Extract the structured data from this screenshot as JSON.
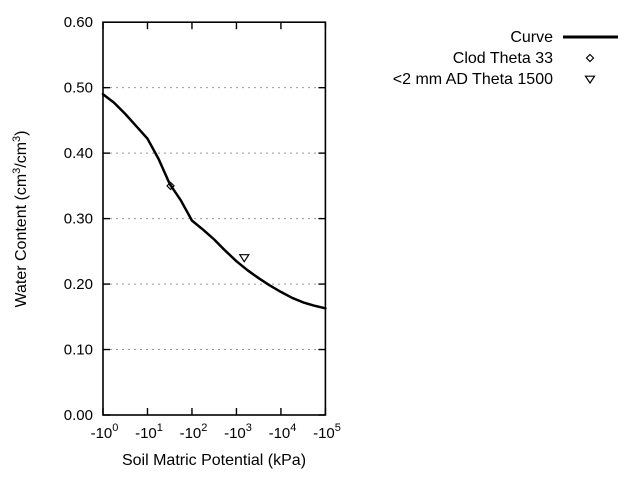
{
  "figure": {
    "background": "#ffffff",
    "text_color": "#000000"
  },
  "chart_data": {
    "type": "line",
    "title": "",
    "xlabel": "Soil Matric Potential (kPa)",
    "ylabel": "Water Content (cm3/cm3)",
    "ylabel_parts": [
      "Water Content (cm",
      "3",
      "/cm",
      "3",
      ")"
    ],
    "x_scale": "negative-log10",
    "x_decade_range": [
      0,
      5
    ],
    "ylim": [
      0.0,
      0.6
    ],
    "grid": {
      "horizontal": "dotted",
      "vertical": "none",
      "color": "#999999"
    },
    "x_ticks": [
      {
        "base": "-10",
        "exp": "0",
        "decade": 0
      },
      {
        "base": "-10",
        "exp": "1",
        "decade": 1
      },
      {
        "base": "-10",
        "exp": "2",
        "decade": 2
      },
      {
        "base": "-10",
        "exp": "3",
        "decade": 3
      },
      {
        "base": "-10",
        "exp": "4",
        "decade": 4
      },
      {
        "base": "-10",
        "exp": "5",
        "decade": 5
      }
    ],
    "y_ticks": [
      {
        "value": 0.0,
        "label": "0.00"
      },
      {
        "value": 0.1,
        "label": "0.10"
      },
      {
        "value": 0.2,
        "label": "0.20"
      },
      {
        "value": 0.3,
        "label": "0.30"
      },
      {
        "value": 0.4,
        "label": "0.40"
      },
      {
        "value": 0.5,
        "label": "0.50"
      },
      {
        "value": 0.6,
        "label": "0.60"
      }
    ],
    "series": [
      {
        "name": "Curve",
        "type": "line",
        "color": "#000000",
        "points_log10kpa_theta": [
          [
            0.0,
            0.49
          ],
          [
            0.25,
            0.477
          ],
          [
            0.5,
            0.46
          ],
          [
            0.75,
            0.441
          ],
          [
            1.0,
            0.422
          ],
          [
            1.25,
            0.391
          ],
          [
            1.5,
            0.353
          ],
          [
            1.75,
            0.328
          ],
          [
            2.0,
            0.297
          ],
          [
            2.25,
            0.283
          ],
          [
            2.5,
            0.268
          ],
          [
            2.75,
            0.251
          ],
          [
            3.0,
            0.235
          ],
          [
            3.25,
            0.221
          ],
          [
            3.5,
            0.209
          ],
          [
            3.75,
            0.198
          ],
          [
            4.0,
            0.188
          ],
          [
            4.25,
            0.179
          ],
          [
            4.5,
            0.172
          ],
          [
            4.75,
            0.167
          ],
          [
            5.0,
            0.163
          ]
        ]
      },
      {
        "name": "Clod Theta 33",
        "type": "scatter",
        "marker": "open-diamond",
        "color": "#000000",
        "points": [
          {
            "potential_kpa": -33,
            "theta": 0.35
          }
        ]
      },
      {
        "name": "<2 mm AD Theta 1500",
        "type": "scatter",
        "marker": "open-triangle-down",
        "color": "#000000",
        "points": [
          {
            "potential_kpa": -1500,
            "theta": 0.24
          }
        ]
      }
    ],
    "legend": {
      "position": "outside-top-right",
      "entries": [
        "Curve",
        "Clod Theta 33",
        "<2 mm AD Theta 1500"
      ]
    }
  }
}
